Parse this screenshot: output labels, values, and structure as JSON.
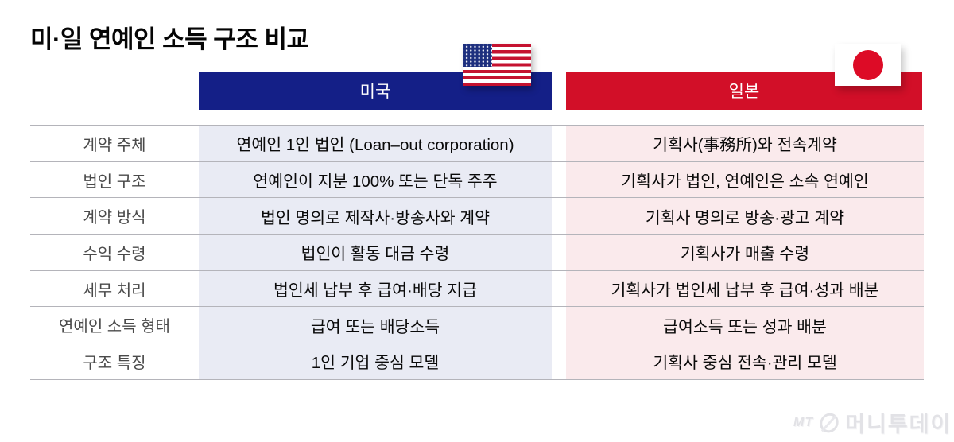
{
  "title": "미·일 연예인 소득 구조 비교",
  "colors": {
    "us_header": "#141f87",
    "jp_header": "#d20f28",
    "us_cell_bg": "#e9ebf4",
    "jp_cell_bg": "#faeaec",
    "separator": "#b4b4ba",
    "label_text": "#4a4a4a",
    "cell_text": "#0a0a0a"
  },
  "icons": {
    "us_flag": "us-flag",
    "jp_flag": "japan-flag"
  },
  "watermark": {
    "prefix": "MT",
    "brand": "머니투데이"
  },
  "chart_data": {
    "type": "table",
    "title": "미·일 연예인 소득 구조 비교",
    "columns": [
      {
        "key": "label",
        "label": ""
      },
      {
        "key": "us",
        "label": "미국",
        "header_color": "#141f87"
      },
      {
        "key": "japan",
        "label": "일본",
        "header_color": "#d20f28"
      }
    ],
    "rows": [
      {
        "label": "계약 주체",
        "us": "연예인 1인 법인 (Loan–out corporation)",
        "japan": "기획사(事務所)와 전속계약"
      },
      {
        "label": "법인 구조",
        "us": "연예인이 지분 100% 또는 단독 주주",
        "japan": "기획사가 법인, 연예인은 소속 연예인"
      },
      {
        "label": "계약 방식",
        "us": "법인 명의로 제작사·방송사와 계약",
        "japan": "기획사 명의로 방송·광고 계약"
      },
      {
        "label": "수익 수령",
        "us": "법인이 활동 대금 수령",
        "japan": "기획사가 매출 수령"
      },
      {
        "label": "세무 처리",
        "us": "법인세 납부 후 급여·배당 지급",
        "japan": "기획사가 법인세 납부 후 급여·성과 배분"
      },
      {
        "label": "연예인 소득 형태",
        "us": "급여 또는 배당소득",
        "japan": "급여소득 또는 성과 배분"
      },
      {
        "label": "구조 특징",
        "us": "1인 기업 중심 모델",
        "japan": "기획사 중심 전속·관리 모델"
      }
    ]
  }
}
